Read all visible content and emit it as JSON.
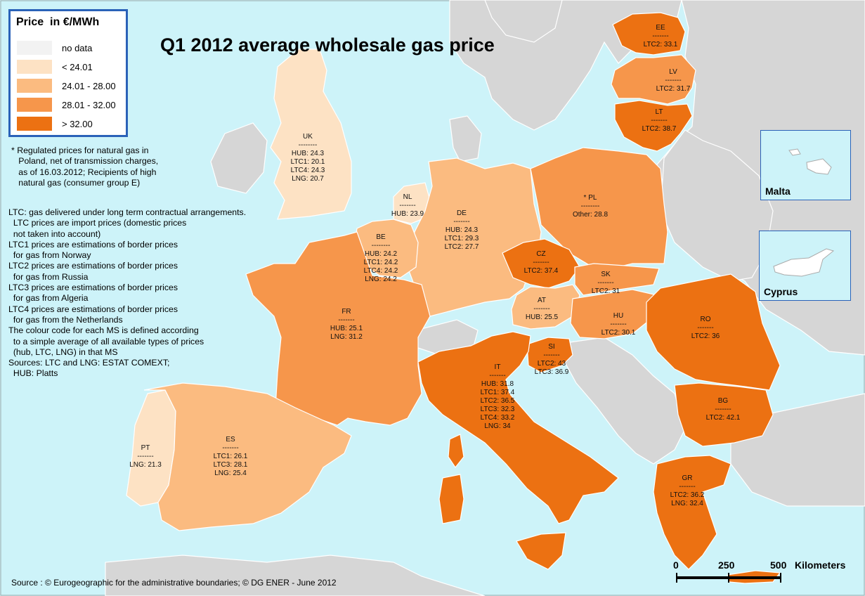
{
  "title": "Q1 2012 average wholesale gas price",
  "legend": {
    "title": "Price  in €/MWh",
    "items": [
      {
        "label": "no data",
        "color": "#f2f2f2"
      },
      {
        "label": "< 24.01",
        "color": "#fde2c4"
      },
      {
        "label": "24.01 - 28.00",
        "color": "#fbbb80"
      },
      {
        "label": "28.01 - 32.00",
        "color": "#f6964b"
      },
      {
        "label": "> 32.00",
        "color": "#ec7112"
      }
    ]
  },
  "footnote": [
    "* Regulated prices for natural gas in",
    "   Poland, net of transmission charges,",
    "   as of 16.03.2012; Recipients of high",
    "   natural gas (consumer group E)"
  ],
  "notes": [
    "LTC: gas delivered under long term contractual arrangements.",
    "  LTC prices are import prices (domestic prices",
    "  not taken into account)",
    "LTC1 prices are estimations of border prices",
    "  for gas from Norway",
    "LTC2 prices are estimations of border prices",
    "  for gas from Russia",
    "LTC3 prices are estimations of border prices",
    "  for gas from Algeria",
    "LTC4 prices are estimations of border prices",
    "  for gas from the Netherlands",
    "The colour code for each MS is defined according",
    "  to a simple average of all available types of prices",
    "  (hub, LTC, LNG) in that MS",
    "Sources: LTC and LNG: ESTAT COMEXT;",
    "  HUB: Platts"
  ],
  "countries": {
    "EE": {
      "code": "EE",
      "lines": [
        "-------",
        "LTC2: 33.1"
      ]
    },
    "LV": {
      "code": "LV",
      "lines": [
        "-------",
        "LTC2: 31.7"
      ]
    },
    "LT": {
      "code": "LT",
      "lines": [
        "-------",
        "LTC2: 38.7"
      ]
    },
    "UK": {
      "code": "UK",
      "lines": [
        "--------",
        "HUB: 24.3",
        "LTC1: 20.1",
        "LTC4: 24.3",
        "LNG: 20.7"
      ]
    },
    "NL": {
      "code": "NL",
      "lines": [
        "-------",
        "HUB: 23.9"
      ]
    },
    "DE": {
      "code": "DE",
      "lines": [
        "-------",
        "HUB: 24.3",
        "LTC1: 29.3",
        "LTC2: 27.7"
      ]
    },
    "PL": {
      "code": "*   PL",
      "lines": [
        "--------",
        "Other: 28.8"
      ]
    },
    "BE": {
      "code": "BE",
      "lines": [
        "--------",
        "HUB: 24.2",
        "LTC1: 24.2",
        "LTC4: 24.2",
        "LNG: 24.2"
      ]
    },
    "CZ": {
      "code": "CZ",
      "lines": [
        "-------",
        "LTC2: 37.4"
      ]
    },
    "SK": {
      "code": "SK",
      "lines": [
        "-------",
        "LTC2: 31"
      ]
    },
    "AT": {
      "code": "AT",
      "lines": [
        "-------",
        "HUB: 25.5"
      ]
    },
    "HU": {
      "code": "HU",
      "lines": [
        "-------",
        "LTC2: 30.1"
      ]
    },
    "RO": {
      "code": "RO",
      "lines": [
        "-------",
        "LTC2: 36"
      ]
    },
    "FR": {
      "code": "FR",
      "lines": [
        "-------",
        "HUB: 25.1",
        "LNG: 31.2"
      ]
    },
    "SI": {
      "code": "SI",
      "lines": [
        "-------",
        "LTC2: 43",
        "LTC3: 36.9"
      ]
    },
    "IT": {
      "code": "IT",
      "lines": [
        "-------",
        "HUB: 31.8",
        "LTC1: 37.4",
        "LTC2: 36.5",
        "LTC3: 32.3",
        "LTC4: 33.2",
        "LNG: 34"
      ]
    },
    "BG": {
      "code": "BG",
      "lines": [
        "-------",
        "LTC2: 42.1"
      ]
    },
    "PT": {
      "code": "PT",
      "lines": [
        "-------",
        "LNG: 21.3"
      ]
    },
    "ES": {
      "code": "ES",
      "lines": [
        "-------",
        "LTC1: 26.1",
        "LTC3: 28.1",
        "LNG: 25.4"
      ]
    },
    "GR": {
      "code": "GR",
      "lines": [
        "-------",
        "LTC2: 36.2",
        "LNG: 32.4"
      ]
    }
  },
  "insets": {
    "malta": "Malta",
    "cyprus": "Cyprus"
  },
  "scale": {
    "t0": "0",
    "t1": "250",
    "t2": "500",
    "unit": "Kilometers"
  },
  "source": "Source : © Eurogeographic for the administrative boundaries;   © DG ENER - June 2012"
}
